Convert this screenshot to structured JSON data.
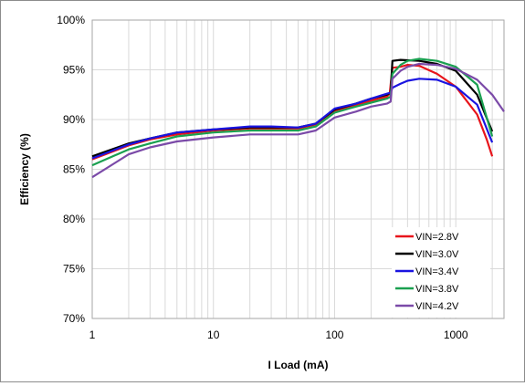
{
  "chart_data": {
    "type": "line",
    "title": "",
    "xlabel": "I Load (mA)",
    "ylabel": "Efficiency (%)",
    "x_scale": "log",
    "xlim": [
      1,
      2500
    ],
    "ylim": [
      70,
      100
    ],
    "x_ticks": [
      1,
      10,
      100,
      1000
    ],
    "x_tick_labels": [
      "1",
      "10",
      "100",
      "1000"
    ],
    "y_ticks": [
      70,
      75,
      80,
      85,
      90,
      95,
      100
    ],
    "y_tick_labels": [
      "70%",
      "75%",
      "80%",
      "85%",
      "90%",
      "95%",
      "100%"
    ],
    "grid": "on (major and minor, vertical log grid)",
    "legend_position": "bottom-right",
    "series": [
      {
        "name": "VIN=2.8V",
        "color": "#e8141b",
        "points": [
          [
            1,
            86.0
          ],
          [
            2,
            87.4
          ],
          [
            3,
            88.0
          ],
          [
            5,
            88.5
          ],
          [
            10,
            88.9
          ],
          [
            20,
            89.1
          ],
          [
            30,
            89.1
          ],
          [
            50,
            89.1
          ],
          [
            70,
            89.5
          ],
          [
            100,
            90.9
          ],
          [
            150,
            91.4
          ],
          [
            200,
            91.9
          ],
          [
            270,
            92.3
          ],
          [
            285,
            92.6
          ],
          [
            300,
            95.2
          ],
          [
            350,
            95.3
          ],
          [
            400,
            95.5
          ],
          [
            500,
            95.4
          ],
          [
            700,
            94.6
          ],
          [
            1000,
            93.3
          ],
          [
            1500,
            90.5
          ],
          [
            1800,
            88.0
          ],
          [
            2000,
            86.3
          ]
        ]
      },
      {
        "name": "VIN=3.0V",
        "color": "#000000",
        "points": [
          [
            1,
            86.3
          ],
          [
            2,
            87.6
          ],
          [
            3,
            88.1
          ],
          [
            5,
            88.7
          ],
          [
            10,
            89.0
          ],
          [
            20,
            89.2
          ],
          [
            30,
            89.2
          ],
          [
            50,
            89.2
          ],
          [
            70,
            89.6
          ],
          [
            100,
            91.0
          ],
          [
            150,
            91.6
          ],
          [
            200,
            92.1
          ],
          [
            270,
            92.5
          ],
          [
            290,
            92.7
          ],
          [
            300,
            95.9
          ],
          [
            350,
            96.0
          ],
          [
            500,
            95.9
          ],
          [
            700,
            95.6
          ],
          [
            1000,
            94.9
          ],
          [
            1500,
            92.5
          ],
          [
            2000,
            88.8
          ]
        ]
      },
      {
        "name": "VIN=3.4V",
        "color": "#1a14e0",
        "points": [
          [
            1,
            86.1
          ],
          [
            2,
            87.5
          ],
          [
            3,
            88.1
          ],
          [
            5,
            88.7
          ],
          [
            10,
            89.0
          ],
          [
            20,
            89.3
          ],
          [
            30,
            89.3
          ],
          [
            50,
            89.2
          ],
          [
            70,
            89.6
          ],
          [
            100,
            91.1
          ],
          [
            150,
            91.6
          ],
          [
            200,
            92.1
          ],
          [
            270,
            92.6
          ],
          [
            290,
            92.7
          ],
          [
            300,
            93.2
          ],
          [
            350,
            93.6
          ],
          [
            400,
            93.9
          ],
          [
            500,
            94.1
          ],
          [
            700,
            94.0
          ],
          [
            1000,
            93.3
          ],
          [
            1500,
            91.5
          ],
          [
            2000,
            87.7
          ]
        ]
      },
      {
        "name": "VIN=3.8V",
        "color": "#1aa050",
        "points": [
          [
            1,
            85.4
          ],
          [
            2,
            87.0
          ],
          [
            3,
            87.6
          ],
          [
            5,
            88.3
          ],
          [
            10,
            88.7
          ],
          [
            20,
            88.9
          ],
          [
            30,
            88.9
          ],
          [
            50,
            88.9
          ],
          [
            70,
            89.3
          ],
          [
            100,
            90.7
          ],
          [
            150,
            91.3
          ],
          [
            200,
            91.7
          ],
          [
            270,
            92.1
          ],
          [
            290,
            92.3
          ],
          [
            300,
            94.6
          ],
          [
            350,
            95.5
          ],
          [
            400,
            95.9
          ],
          [
            500,
            96.1
          ],
          [
            700,
            95.9
          ],
          [
            1000,
            95.3
          ],
          [
            1500,
            93.5
          ],
          [
            2000,
            88.3
          ]
        ]
      },
      {
        "name": "VIN=4.2V",
        "color": "#7b4aa8",
        "points": [
          [
            1,
            84.2
          ],
          [
            2,
            86.5
          ],
          [
            3,
            87.2
          ],
          [
            5,
            87.8
          ],
          [
            10,
            88.2
          ],
          [
            20,
            88.5
          ],
          [
            30,
            88.5
          ],
          [
            50,
            88.5
          ],
          [
            70,
            88.9
          ],
          [
            100,
            90.2
          ],
          [
            150,
            90.8
          ],
          [
            200,
            91.3
          ],
          [
            270,
            91.6
          ],
          [
            290,
            91.8
          ],
          [
            300,
            94.1
          ],
          [
            350,
            94.9
          ],
          [
            400,
            95.3
          ],
          [
            500,
            95.6
          ],
          [
            700,
            95.5
          ],
          [
            1000,
            95.1
          ],
          [
            1500,
            94.0
          ],
          [
            2000,
            92.5
          ],
          [
            2500,
            90.8
          ]
        ]
      }
    ]
  }
}
